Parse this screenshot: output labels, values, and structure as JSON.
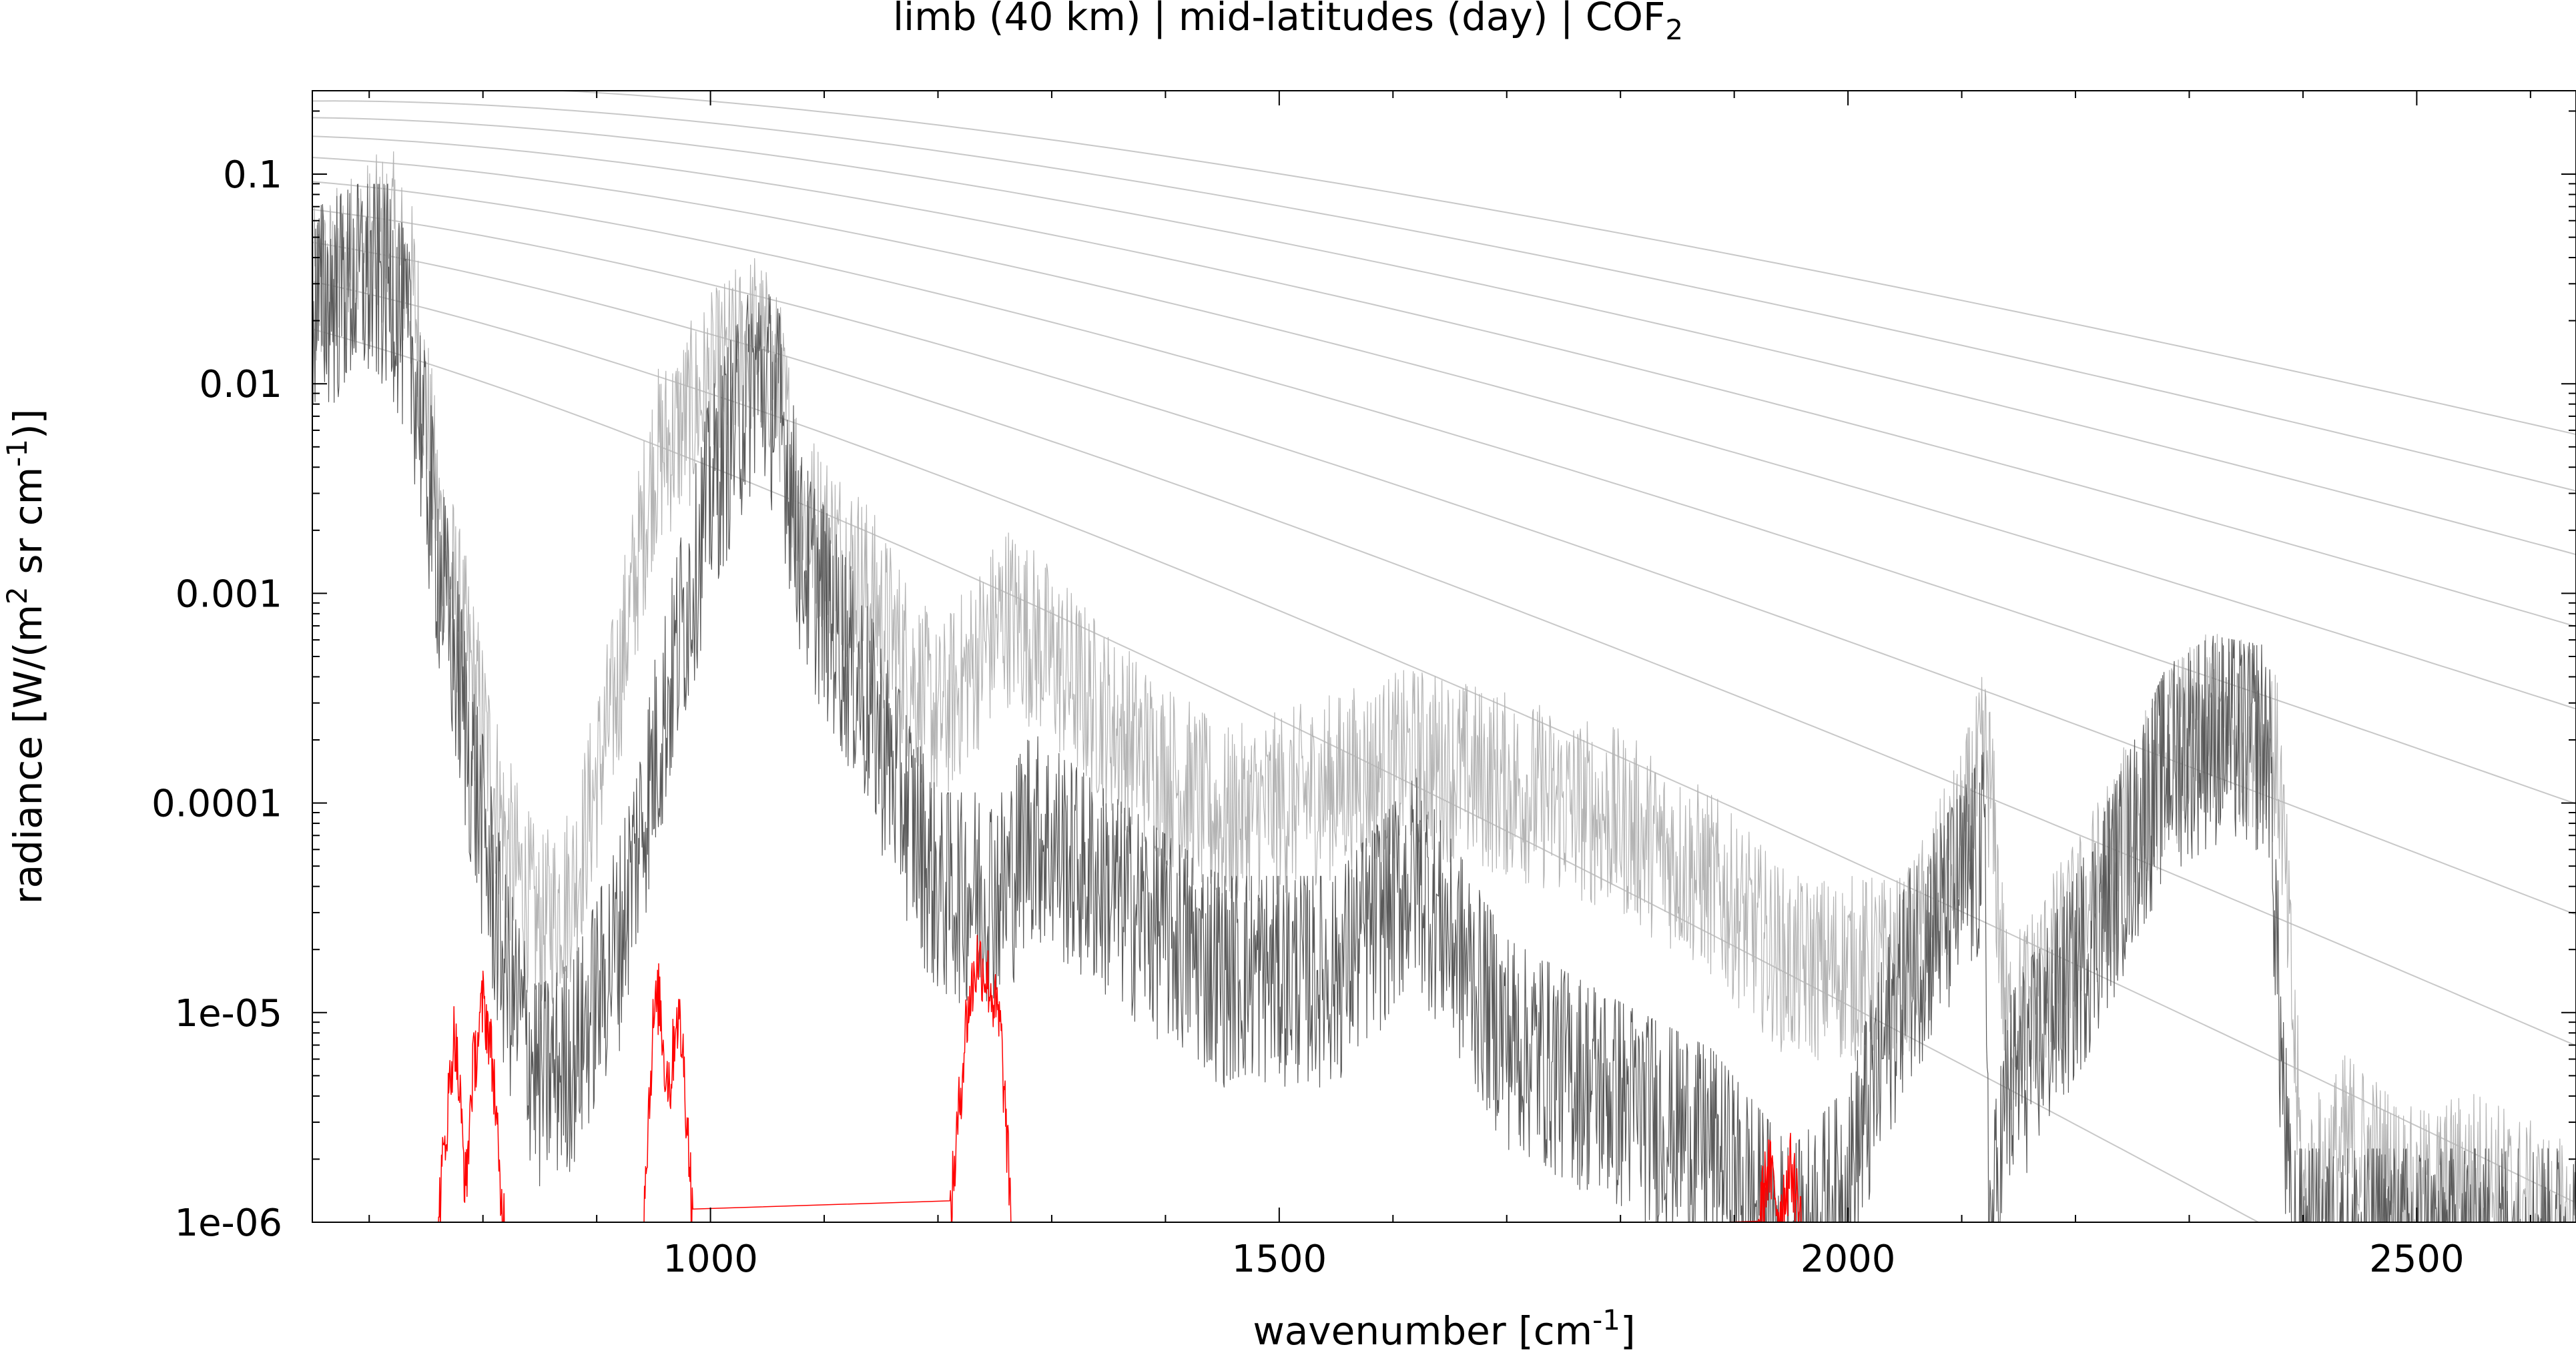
{
  "chart_data": {
    "type": "line",
    "title": "limb (40 km) | mid-latitudes (day) | COF",
    "title_subscript": "2",
    "xlabel": "wavenumber [cm",
    "xlabel_superscript": "-1",
    "xlabel_close": "]",
    "ylabel_parts": [
      "radiance [W/(m",
      "2",
      " sr cm",
      "-1",
      ")]"
    ],
    "xlim": [
      650,
      2640
    ],
    "ylim": [
      1e-06,
      0.25
    ],
    "yscale": "log",
    "grid": false,
    "x_ticks": [
      1000,
      1500,
      2000,
      2500
    ],
    "x_tick_labels": [
      "1000",
      "1500",
      "2000",
      "2500"
    ],
    "y_ticks": [
      0.1,
      0.01,
      0.001,
      0.0001,
      1e-05,
      1e-06
    ],
    "y_tick_labels": [
      "0.1",
      "0.01",
      "0.001",
      "0.0001",
      "1e-05",
      "1e-06"
    ],
    "reference_temperatures_K": [
      180,
      200,
      220,
      240,
      260,
      280,
      300,
      320,
      340,
      360
    ],
    "series": [
      {
        "color": "#b4b4b4",
        "x": [
          650,
          690,
          720,
          740,
          760,
          790,
          820,
          850,
          880,
          920,
          950,
          1000,
          1040,
          1060,
          1080,
          1130,
          1200,
          1260,
          1280,
          1350,
          1450,
          1550,
          1620,
          1700,
          1800,
          1880,
          1950,
          2000,
          2050,
          2100,
          2120,
          2125,
          2140,
          2200,
          2280,
          2320,
          2370,
          2380,
          2400,
          2440,
          2500,
          2550,
          2640
        ],
        "y": [
          0.03,
          0.05,
          0.06,
          0.03,
          0.003,
          0.0005,
          8e-05,
          3e-05,
          5e-05,
          0.0005,
          0.005,
          0.012,
          0.02,
          0.012,
          0.003,
          0.0015,
          0.0003,
          0.001,
          0.0008,
          0.0003,
          0.0001,
          0.00015,
          0.0002,
          0.00015,
          0.0001,
          5e-05,
          2e-05,
          2e-05,
          2e-05,
          8e-05,
          0.0002,
          0.00015,
          1e-05,
          3e-05,
          0.0002,
          0.0003,
          0.00025,
          0.00015,
          1.5e-06,
          3e-06,
          1.5e-06,
          2e-06,
          1e-06
        ]
      },
      {
        "color": "#5a5a5a",
        "x": [
          650,
          690,
          720,
          740,
          760,
          790,
          820,
          850,
          880,
          920,
          950,
          1000,
          1040,
          1060,
          1080,
          1130,
          1200,
          1260,
          1280,
          1350,
          1450,
          1550,
          1620,
          1700,
          1800,
          1880,
          1950,
          2000,
          2050,
          2100,
          2120,
          2125,
          2140,
          2200,
          2280,
          2320,
          2370,
          2380,
          2390,
          2640
        ],
        "y": [
          0.03,
          0.04,
          0.04,
          0.015,
          0.002,
          0.0002,
          2e-05,
          6e-06,
          8e-06,
          3e-05,
          0.0002,
          0.004,
          0.015,
          0.01,
          0.002,
          0.0005,
          5e-05,
          5e-05,
          0.0001,
          5e-05,
          2e-05,
          2e-05,
          6e-05,
          1e-05,
          5e-06,
          3e-06,
          1e-06,
          2e-06,
          2e-05,
          5e-05,
          8e-05,
          1e-06,
          5e-06,
          2e-05,
          0.0002,
          0.00028,
          0.00025,
          1e-05,
          1e-06,
          1e-06
        ]
      },
      {
        "color": "#ff0000",
        "x": [
          760,
          775,
          780,
          785,
          790,
          800,
          805,
          810,
          815,
          820,
          940,
          950,
          955,
          960,
          965,
          970,
          975,
          980,
          985,
          1210,
          1225,
          1235,
          1245,
          1255,
          1265,
          1920,
          1930,
          1940,
          1950,
          1960
        ],
        "y": [
          1e-06,
          9e-06,
          4e-06,
          1.5e-06,
          5e-06,
          1.2e-05,
          9e-06,
          5e-06,
          1.5e-06,
          1e-06,
          1e-06,
          1e-05,
          1.3e-05,
          6e-06,
          5e-06,
          1.1e-05,
          8e-06,
          3e-06,
          1e-06,
          1e-06,
          1e-05,
          2e-05,
          1.5e-05,
          9e-06,
          1e-06,
          1e-06,
          2e-06,
          1.2e-06,
          2e-06,
          1e-06
        ]
      }
    ]
  }
}
